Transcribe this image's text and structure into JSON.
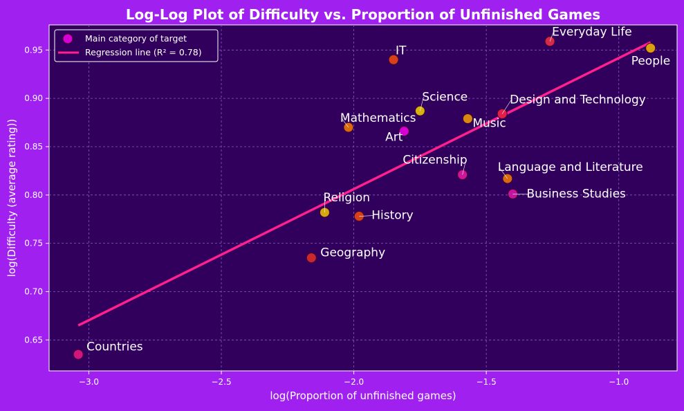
{
  "colors": {
    "figure_background": "#a020f0",
    "plot_background": "#30005c",
    "grid": "#8a5cc0",
    "regression_line": "#ff1f8e",
    "text": "#ffffff"
  },
  "chart_data": {
    "type": "scatter",
    "title": "Log-Log Plot of Difficulty vs. Proportion of Unfinished Games",
    "xlabel": "log(Proportion of unfinished games)",
    "ylabel": "log(Difficulty (average rating))",
    "xlim": [
      -3.15,
      -0.78
    ],
    "ylim": [
      0.618,
      0.976
    ],
    "x_ticks": [
      -3.0,
      -2.5,
      -2.0,
      -1.5,
      -1.0
    ],
    "x_tick_labels": [
      "−3.0",
      "−2.5",
      "−2.0",
      "−1.5",
      "−1.0"
    ],
    "y_ticks": [
      0.65,
      0.7,
      0.75,
      0.8,
      0.85,
      0.9,
      0.95
    ],
    "y_tick_labels": [
      "0.65",
      "0.70",
      "0.75",
      "0.80",
      "0.85",
      "0.90",
      "0.95"
    ],
    "grid": true,
    "legend": {
      "placement": "top-left",
      "entries": [
        {
          "label": "Main category of target",
          "kind": "marker",
          "color": "#d400d4"
        },
        {
          "label": "Regression line (R² = 0.78)",
          "kind": "line",
          "color": "#ff1f8e"
        }
      ]
    },
    "points": [
      {
        "label": "Countries",
        "x": -3.04,
        "y": 0.635,
        "color": "#d0157e"
      },
      {
        "label": "Geography",
        "x": -2.16,
        "y": 0.735,
        "color": "#c8282e"
      },
      {
        "label": "Religion",
        "x": -2.11,
        "y": 0.782,
        "color": "#d4a810"
      },
      {
        "label": "History",
        "x": -1.98,
        "y": 0.778,
        "color": "#d6401a"
      },
      {
        "label": "Mathematics",
        "x": -2.02,
        "y": 0.87,
        "color": "#d86a10"
      },
      {
        "label": "Art",
        "x": -1.81,
        "y": 0.866,
        "color": "#d400d4"
      },
      {
        "label": "IT",
        "x": -1.85,
        "y": 0.94,
        "color": "#d6401a"
      },
      {
        "label": "Science",
        "x": -1.75,
        "y": 0.887,
        "color": "#d4b210"
      },
      {
        "label": "Citizenship",
        "x": -1.59,
        "y": 0.821,
        "color": "#d0159a"
      },
      {
        "label": "Music",
        "x": -1.57,
        "y": 0.879,
        "color": "#d88a10"
      },
      {
        "label": "Design and Technology",
        "x": -1.44,
        "y": 0.884,
        "color": "#e0204a"
      },
      {
        "label": "Language and Literature",
        "x": -1.42,
        "y": 0.817,
        "color": "#d86a10"
      },
      {
        "label": "Business Studies",
        "x": -1.4,
        "y": 0.801,
        "color": "#c4159e"
      },
      {
        "label": "Everyday Life",
        "x": -1.26,
        "y": 0.959,
        "color": "#d62a4a"
      },
      {
        "label": "People",
        "x": -0.88,
        "y": 0.952,
        "color": "#d8a010"
      }
    ],
    "regression_line": {
      "x": [
        -3.04,
        -0.88
      ],
      "y": [
        0.665,
        0.958
      ]
    }
  }
}
